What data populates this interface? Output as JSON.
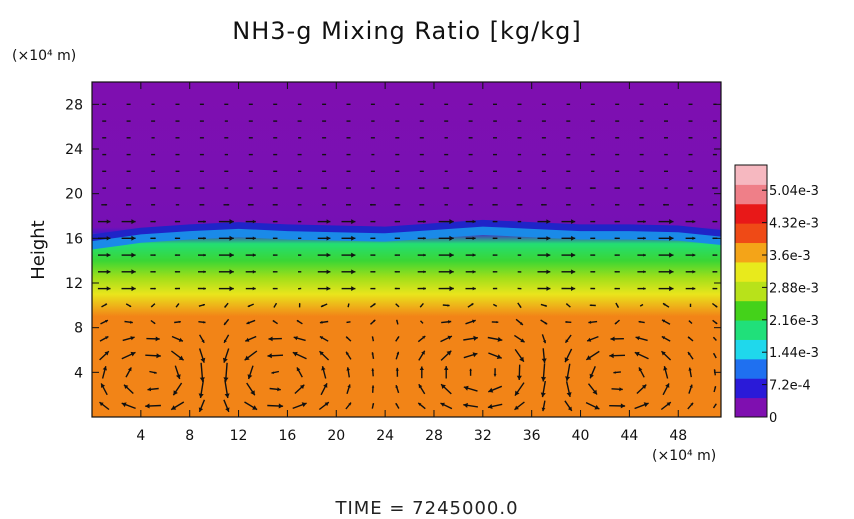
{
  "chart_data": {
    "type": "heatmap",
    "title": "NH3-g Mixing Ratio [kg/kg]",
    "xlabel": "",
    "x_unit": "(×10⁴ m)",
    "ylabel": "Height",
    "y_unit": "(×10⁴ m)",
    "footer": "TIME  =  7245000.0",
    "xlim": [
      0,
      51.5
    ],
    "ylim": [
      0,
      30
    ],
    "x_ticks": [
      4,
      8,
      12,
      16,
      20,
      24,
      28,
      32,
      36,
      40,
      44,
      48
    ],
    "y_ticks": [
      4,
      8,
      12,
      16,
      20,
      24,
      28
    ],
    "colorbar": {
      "range": [
        0,
        0.0056
      ],
      "ticks": [
        {
          "value": 0,
          "label": "0"
        },
        {
          "value": 0.00072,
          "label": "7.2e-4"
        },
        {
          "value": 0.00144,
          "label": "1.44e-3"
        },
        {
          "value": 0.00216,
          "label": "2.16e-3"
        },
        {
          "value": 0.00288,
          "label": "2.88e-3"
        },
        {
          "value": 0.0036,
          "label": "3.6e-3"
        },
        {
          "value": 0.00432,
          "label": "4.32e-3"
        },
        {
          "value": 0.00504,
          "label": "5.04e-3"
        }
      ],
      "colors": [
        "#7f0fb0",
        "#2a1ad8",
        "#1f70f0",
        "#1fd8ec",
        "#20e07a",
        "#44d21a",
        "#b8e21a",
        "#e8ea1c",
        "#f4a418",
        "#ef4a16",
        "#e81818",
        "#ef7f88",
        "#f6b8c0"
      ]
    },
    "field_profile": [
      {
        "height": 0,
        "value": 0.0039
      },
      {
        "height": 9,
        "value": 0.0039
      },
      {
        "height": 11,
        "value": 0.0033
      },
      {
        "height": 12.5,
        "value": 0.0027
      },
      {
        "height": 14,
        "value": 0.0022
      },
      {
        "height": 15.5,
        "value": 0.0019
      },
      {
        "height": 16.5,
        "value": 0.0003
      },
      {
        "height": 17,
        "value": 5e-05
      },
      {
        "height": 30,
        "value": 0
      }
    ],
    "interface_height": [
      {
        "x": 0,
        "y": 16.0
      },
      {
        "x": 4,
        "y": 16.6
      },
      {
        "x": 8,
        "y": 16.9
      },
      {
        "x": 12,
        "y": 17.1
      },
      {
        "x": 16,
        "y": 16.9
      },
      {
        "x": 20,
        "y": 16.8
      },
      {
        "x": 24,
        "y": 16.7
      },
      {
        "x": 28,
        "y": 17.0
      },
      {
        "x": 32,
        "y": 17.3
      },
      {
        "x": 36,
        "y": 17.1
      },
      {
        "x": 40,
        "y": 16.9
      },
      {
        "x": 44,
        "y": 16.9
      },
      {
        "x": 48,
        "y": 16.8
      },
      {
        "x": 51.5,
        "y": 16.4
      }
    ],
    "wind_vectors": {
      "color": "#111111",
      "description": "overturning convective cells below 8; weak flow aloft",
      "cells": [
        {
          "x": 5,
          "y": 3.5,
          "rotation": "cw"
        },
        {
          "x": 15,
          "y": 3.5,
          "rotation": "ccw"
        },
        {
          "x": 32,
          "y": 4.0,
          "rotation": "cw"
        },
        {
          "x": 43,
          "y": 3.5,
          "rotation": "ccw"
        }
      ]
    }
  }
}
